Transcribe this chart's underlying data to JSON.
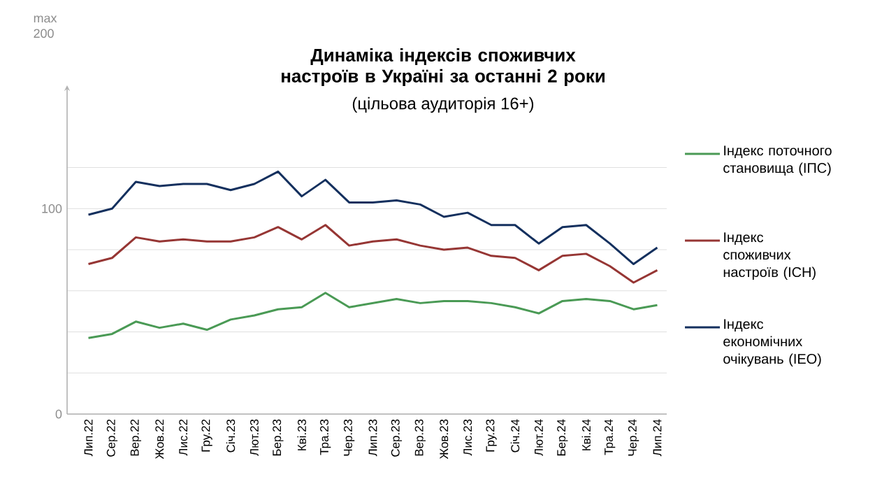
{
  "chart_data": {
    "type": "line",
    "title": "Динаміка індексів споживчих настроїв в Україні за останні 2 роки",
    "subtitle": "(цільова аудиторія 16+)",
    "categories": [
      "Лип.22",
      "Сер.22",
      "Вер.22",
      "Жов.22",
      "Лис.22",
      "Гру.22",
      "Січ.23",
      "Лют.23",
      "Бер.23",
      "Кві.23",
      "Тра.23",
      "Чер.23",
      "Лип.23",
      "Сер.23",
      "Вер.23",
      "Жов.23",
      "Лис.23",
      "Гру.23",
      "Січ.24",
      "Лют.24",
      "Бер.24",
      "Кві.24",
      "Тра.24",
      "Чер.24",
      "Лип.24"
    ],
    "series": [
      {
        "name": "Індекс поточного становища (ІПС)",
        "color": "#4a9a55",
        "values": [
          37,
          39,
          45,
          42,
          44,
          41,
          46,
          48,
          51,
          52,
          59,
          52,
          54,
          56,
          54,
          55,
          55,
          54,
          52,
          49,
          55,
          56,
          55,
          51,
          53
        ]
      },
      {
        "name": "Індекс споживчих настроїв (ІСН)",
        "color": "#963634",
        "values": [
          73,
          76,
          86,
          84,
          85,
          84,
          84,
          86,
          91,
          85,
          92,
          82,
          84,
          85,
          82,
          80,
          81,
          77,
          76,
          70,
          77,
          78,
          72,
          64,
          70
        ]
      },
      {
        "name": "Індекс економічних очікувань (ІЕО)",
        "color": "#14305e",
        "values": [
          97,
          100,
          113,
          111,
          112,
          112,
          109,
          112,
          118,
          106,
          114,
          103,
          103,
          104,
          102,
          96,
          98,
          92,
          92,
          83,
          91,
          92,
          83,
          73,
          81
        ]
      }
    ],
    "ylim": [
      0,
      160
    ],
    "yticks": [
      0,
      {
        "value": 20,
        "label": null
      },
      {
        "value": 40,
        "label": null
      },
      {
        "value": 60,
        "label": null
      },
      {
        "value": 80,
        "label": null
      },
      100,
      {
        "value": 120,
        "label": null
      }
    ],
    "grid": "y",
    "legend": "right",
    "line_style": "solid",
    "marker": "none",
    "annotations": [
      "max 200"
    ]
  }
}
